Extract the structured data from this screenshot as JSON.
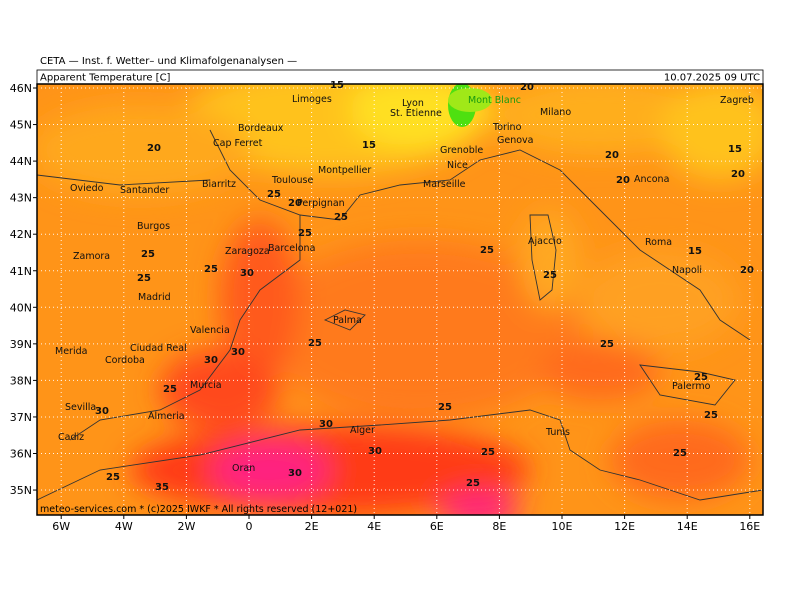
{
  "header": {
    "institute": "CETA — Inst. f. Wetter– und Klimafolgenanalysen —",
    "parameter": "Apparent Temperature [C]",
    "valid_time": "10.07.2025 09 UTC"
  },
  "lat_ticks": [
    {
      "value": 46,
      "label": "46N"
    },
    {
      "value": 45,
      "label": "45N"
    },
    {
      "value": 44,
      "label": "44N"
    },
    {
      "value": 43,
      "label": "43N"
    },
    {
      "value": 42,
      "label": "42N"
    },
    {
      "value": 41,
      "label": "41N"
    },
    {
      "value": 40,
      "label": "40N"
    },
    {
      "value": 39,
      "label": "39N"
    },
    {
      "value": 38,
      "label": "38N"
    },
    {
      "value": 37,
      "label": "37N"
    },
    {
      "value": 36,
      "label": "36N"
    },
    {
      "value": 35,
      "label": "35N"
    }
  ],
  "lon_ticks": [
    {
      "value": -6,
      "label": "6W"
    },
    {
      "value": -4,
      "label": "4W"
    },
    {
      "value": -2,
      "label": "2W"
    },
    {
      "value": 0,
      "label": "0"
    },
    {
      "value": 2,
      "label": "2E"
    },
    {
      "value": 4,
      "label": "4E"
    },
    {
      "value": 6,
      "label": "6E"
    },
    {
      "value": 8,
      "label": "8E"
    },
    {
      "value": 10,
      "label": "10E"
    },
    {
      "value": 12,
      "label": "12E"
    },
    {
      "value": 14,
      "label": "14E"
    },
    {
      "value": 16,
      "label": "16E"
    }
  ],
  "cities": [
    "Limoges",
    "Lyon",
    "St. Etienne",
    "Bordeaux",
    "Cap Ferret",
    "Torino",
    "Genova",
    "Milano",
    "Nice",
    "Marseille",
    "Montpellier",
    "Toulouse",
    "Biarritz",
    "Perpignan",
    "Oviedo",
    "Santander",
    "Burgos",
    "Zaragoza",
    "Barcelona",
    "Zamora",
    "Madrid",
    "Valencia",
    "Palma",
    "Merida",
    "Ciudad Real",
    "Cordoba",
    "Murcia",
    "Sevilla",
    "Almeria",
    "Cadiz",
    "Oran",
    "Alger",
    "Tunis",
    "Ajaccio",
    "Roma",
    "Napoli",
    "Ancona",
    "Palermo",
    "Grenoble",
    "Zagreb",
    "Mont Blanc"
  ],
  "contour_labels": [
    20,
    15,
    15,
    20,
    15,
    20,
    20,
    25,
    20,
    25,
    25,
    25,
    25,
    30,
    25,
    25,
    25,
    30,
    30,
    25,
    30,
    25,
    25,
    30,
    30,
    25,
    25,
    25,
    25,
    25,
    20,
    15,
    20,
    25,
    30,
    35,
    25
  ],
  "footer": "meteo-services.com * (c)2025 IWKF * All rights reserved (12+021)"
}
